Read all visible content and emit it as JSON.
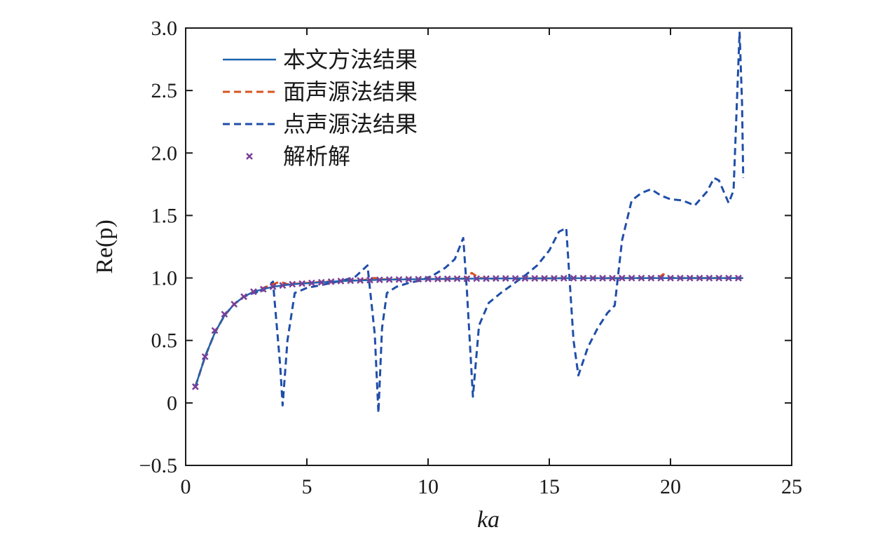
{
  "chart_data": {
    "type": "line",
    "xlabel": "ka",
    "ylabel": "Re(p)",
    "xlim": [
      0,
      25
    ],
    "ylim": [
      -0.5,
      3.0
    ],
    "xticks": [
      0,
      5,
      10,
      15,
      20,
      25
    ],
    "yticks": [
      -0.5,
      0,
      0.5,
      1.0,
      1.5,
      2.0,
      2.5,
      3.0
    ],
    "xtick_labels": [
      "0",
      "5",
      "10",
      "15",
      "20",
      "25"
    ],
    "ytick_labels": [
      "−0.5",
      "0",
      "0.5",
      "1.0",
      "1.5",
      "2.0",
      "2.5",
      "3.0"
    ],
    "grid": false,
    "legend_position": "top-left",
    "series": [
      {
        "name": "本文方法结果",
        "style": "solid",
        "color": "#1f63b0",
        "x": [
          0.4,
          0.8,
          1.2,
          1.6,
          2.0,
          2.4,
          2.8,
          3.2,
          3.6,
          4.0,
          4.4,
          4.8,
          5.2,
          5.6,
          6.0,
          6.4,
          6.8,
          7.2,
          7.6,
          8.0,
          8.4,
          8.8,
          9.2,
          9.6,
          10.0,
          10.4,
          10.8,
          11.2,
          11.6,
          12.0,
          12.4,
          12.8,
          13.2,
          13.6,
          14.0,
          14.4,
          14.8,
          15.2,
          15.6,
          16.0,
          16.4,
          16.8,
          17.2,
          17.6,
          18.0,
          18.4,
          18.8,
          19.2,
          19.6,
          20.0,
          20.4,
          20.8,
          21.2,
          21.6,
          22.0,
          22.4,
          22.8,
          23.0
        ],
        "y": [
          0.13,
          0.37,
          0.56,
          0.7,
          0.79,
          0.85,
          0.89,
          0.91,
          0.93,
          0.94,
          0.95,
          0.955,
          0.96,
          0.965,
          0.97,
          0.975,
          0.978,
          0.98,
          0.983,
          0.985,
          0.987,
          0.988,
          0.989,
          0.99,
          0.991,
          0.992,
          0.993,
          0.994,
          0.994,
          0.995,
          0.995,
          0.996,
          0.996,
          0.996,
          0.997,
          0.997,
          0.997,
          0.997,
          0.998,
          0.998,
          0.998,
          0.998,
          0.998,
          0.998,
          0.999,
          0.999,
          0.999,
          0.999,
          0.999,
          0.999,
          0.999,
          0.999,
          0.999,
          0.999,
          0.999,
          0.999,
          0.999,
          0.999
        ]
      },
      {
        "name": "面声源法结果",
        "style": "dashed",
        "color": "#d9541f",
        "x": [
          0.4,
          0.8,
          1.2,
          1.6,
          2.0,
          2.4,
          2.8,
          3.2,
          3.6,
          3.9,
          4.2,
          4.6,
          5.0,
          5.4,
          5.8,
          6.2,
          6.6,
          7.0,
          7.4,
          7.8,
          8.1,
          8.5,
          9.0,
          9.5,
          10.0,
          10.5,
          11.0,
          11.5,
          11.8,
          12.1,
          12.5,
          13.0,
          13.5,
          14.0,
          14.5,
          15.0,
          15.5,
          16.0,
          16.5,
          17.0,
          17.5,
          18.0,
          18.5,
          19.0,
          19.5,
          19.7,
          20.0,
          20.5,
          21.0,
          21.5,
          22.0,
          22.5,
          23.0
        ],
        "y": [
          0.13,
          0.37,
          0.56,
          0.7,
          0.79,
          0.85,
          0.89,
          0.92,
          0.95,
          0.97,
          0.95,
          0.955,
          0.96,
          0.965,
          0.97,
          0.975,
          0.978,
          0.98,
          0.985,
          1.0,
          0.99,
          0.988,
          0.99,
          0.99,
          0.991,
          0.992,
          0.993,
          0.995,
          1.04,
          1.0,
          0.995,
          0.996,
          0.996,
          0.997,
          0.997,
          0.997,
          0.998,
          1.0,
          0.998,
          0.998,
          0.998,
          0.999,
          0.999,
          0.999,
          1.0,
          1.03,
          1.0,
          0.999,
          0.999,
          0.999,
          0.999,
          0.999,
          0.999
        ]
      },
      {
        "name": "点声源法结果",
        "style": "dashed",
        "color": "#1f4ea8",
        "x": [
          0.4,
          0.8,
          1.2,
          1.6,
          2.0,
          2.4,
          2.8,
          3.2,
          3.6,
          3.9,
          4.0,
          4.2,
          4.5,
          5.0,
          5.5,
          6.0,
          6.5,
          7.0,
          7.5,
          7.8,
          7.95,
          8.1,
          8.3,
          8.7,
          9.2,
          9.7,
          10.2,
          10.7,
          11.1,
          11.45,
          11.6,
          11.85,
          12.1,
          12.5,
          13.0,
          13.5,
          14.0,
          14.5,
          15.0,
          15.4,
          15.7,
          16.0,
          16.2,
          16.6,
          17.0,
          17.4,
          17.7,
          18.0,
          18.4,
          18.8,
          19.2,
          19.6,
          20.0,
          20.5,
          21.0,
          21.5,
          21.8,
          22.0,
          22.4,
          22.6,
          22.85,
          22.95,
          23.0
        ],
        "y": [
          0.13,
          0.37,
          0.56,
          0.7,
          0.79,
          0.85,
          0.88,
          0.9,
          0.97,
          0.3,
          -0.02,
          0.5,
          0.88,
          0.92,
          0.94,
          0.96,
          0.98,
          1.01,
          1.1,
          0.55,
          -0.08,
          0.6,
          0.88,
          0.93,
          0.96,
          0.98,
          1.02,
          1.08,
          1.15,
          1.32,
          0.9,
          0.05,
          0.62,
          0.8,
          0.88,
          0.95,
          1.02,
          1.1,
          1.22,
          1.37,
          1.4,
          0.5,
          0.22,
          0.45,
          0.6,
          0.72,
          0.78,
          1.3,
          1.62,
          1.68,
          1.71,
          1.66,
          1.63,
          1.62,
          1.58,
          1.69,
          1.8,
          1.78,
          1.6,
          1.7,
          2.97,
          2.4,
          1.8
        ]
      },
      {
        "name": "解析解",
        "style": "marker",
        "marker": "x",
        "color": "#7b3f98",
        "x": [
          0.4,
          0.8,
          1.2,
          1.6,
          2.0,
          2.4,
          2.8,
          3.2,
          3.6,
          4.0,
          4.4,
          4.8,
          5.2,
          5.6,
          6.0,
          6.4,
          6.8,
          7.2,
          7.6,
          8.0,
          8.4,
          8.8,
          9.2,
          9.6,
          10.0,
          10.4,
          10.8,
          11.2,
          11.6,
          12.0,
          12.4,
          12.8,
          13.2,
          13.6,
          14.0,
          14.4,
          14.8,
          15.2,
          15.6,
          16.0,
          16.4,
          16.8,
          17.2,
          17.6,
          18.0,
          18.4,
          18.8,
          19.2,
          19.6,
          20.0,
          20.4,
          20.8,
          21.2,
          21.6,
          22.0,
          22.4,
          22.8
        ],
        "y": [
          0.13,
          0.37,
          0.58,
          0.71,
          0.79,
          0.85,
          0.89,
          0.91,
          0.93,
          0.94,
          0.95,
          0.955,
          0.96,
          0.965,
          0.97,
          0.975,
          0.978,
          0.98,
          0.983,
          0.985,
          0.987,
          0.988,
          0.989,
          0.99,
          0.991,
          0.992,
          0.993,
          0.994,
          0.994,
          0.995,
          0.995,
          0.996,
          0.996,
          0.996,
          0.997,
          0.997,
          0.997,
          0.997,
          0.998,
          0.998,
          0.998,
          0.998,
          0.998,
          0.998,
          0.999,
          0.999,
          0.999,
          0.999,
          0.999,
          0.999,
          0.999,
          0.999,
          0.999,
          0.999,
          0.999,
          0.999,
          0.999
        ]
      }
    ]
  }
}
